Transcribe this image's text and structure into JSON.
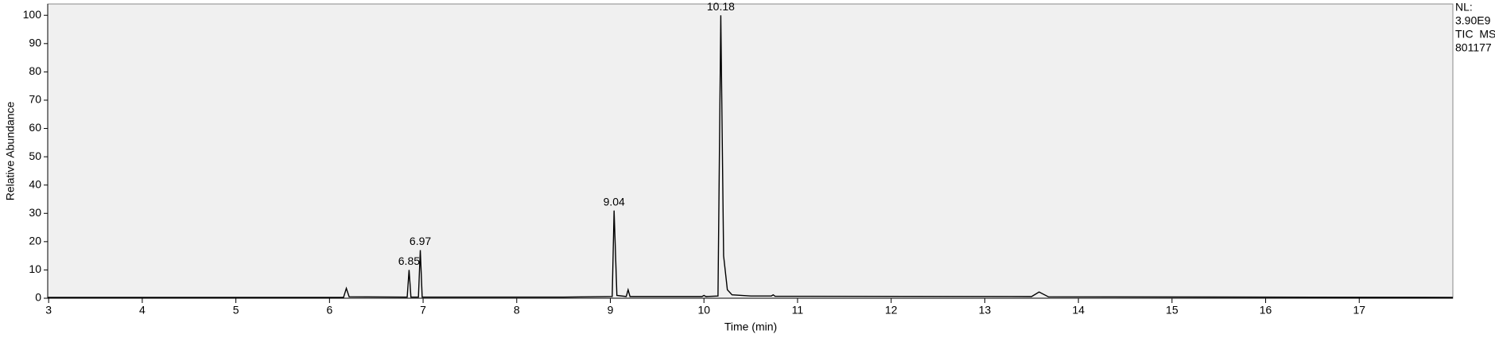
{
  "chart_data": {
    "type": "line",
    "xlabel": "Time (min)",
    "ylabel": "Relative Abundance",
    "x": [
      2.99,
      6.15,
      6.18,
      6.21,
      6.83,
      6.85,
      6.87,
      6.95,
      6.97,
      6.99,
      8.5,
      9.02,
      9.04,
      9.07,
      9.17,
      9.19,
      9.21,
      9.98,
      10.0,
      10.02,
      10.15,
      10.18,
      10.21,
      10.25,
      10.3,
      10.5,
      10.72,
      10.74,
      10.76,
      13.5,
      13.58,
      13.68,
      18.0
    ],
    "y": [
      0.3,
      0.3,
      3.5,
      0.5,
      0.4,
      10,
      0.4,
      0.4,
      17,
      0.4,
      0.4,
      0.6,
      31,
      1,
      0.6,
      3,
      0.6,
      0.6,
      1,
      0.6,
      0.8,
      100,
      15,
      3,
      1.2,
      0.8,
      0.8,
      1.2,
      0.7,
      0.6,
      2.2,
      0.5,
      0.3
    ],
    "color": "#000000",
    "peaks": [
      {
        "time": 6.85,
        "height": 10
      },
      {
        "time": 6.97,
        "height": 17
      },
      {
        "time": 9.04,
        "height": 31
      },
      {
        "time": 10.18,
        "height": 100
      }
    ],
    "info": [
      "NL:",
      "3.90E9",
      "TIC  MS",
      "801177"
    ],
    "xlim": [
      2.99,
      18.0
    ],
    "ylim": [
      0,
      104
    ],
    "xticks": [
      3,
      4,
      5,
      6,
      7,
      8,
      9,
      10,
      11,
      12,
      13,
      14,
      15,
      16,
      17
    ],
    "yticks": [
      0,
      10,
      20,
      30,
      40,
      50,
      60,
      70,
      80,
      90,
      100
    ]
  }
}
